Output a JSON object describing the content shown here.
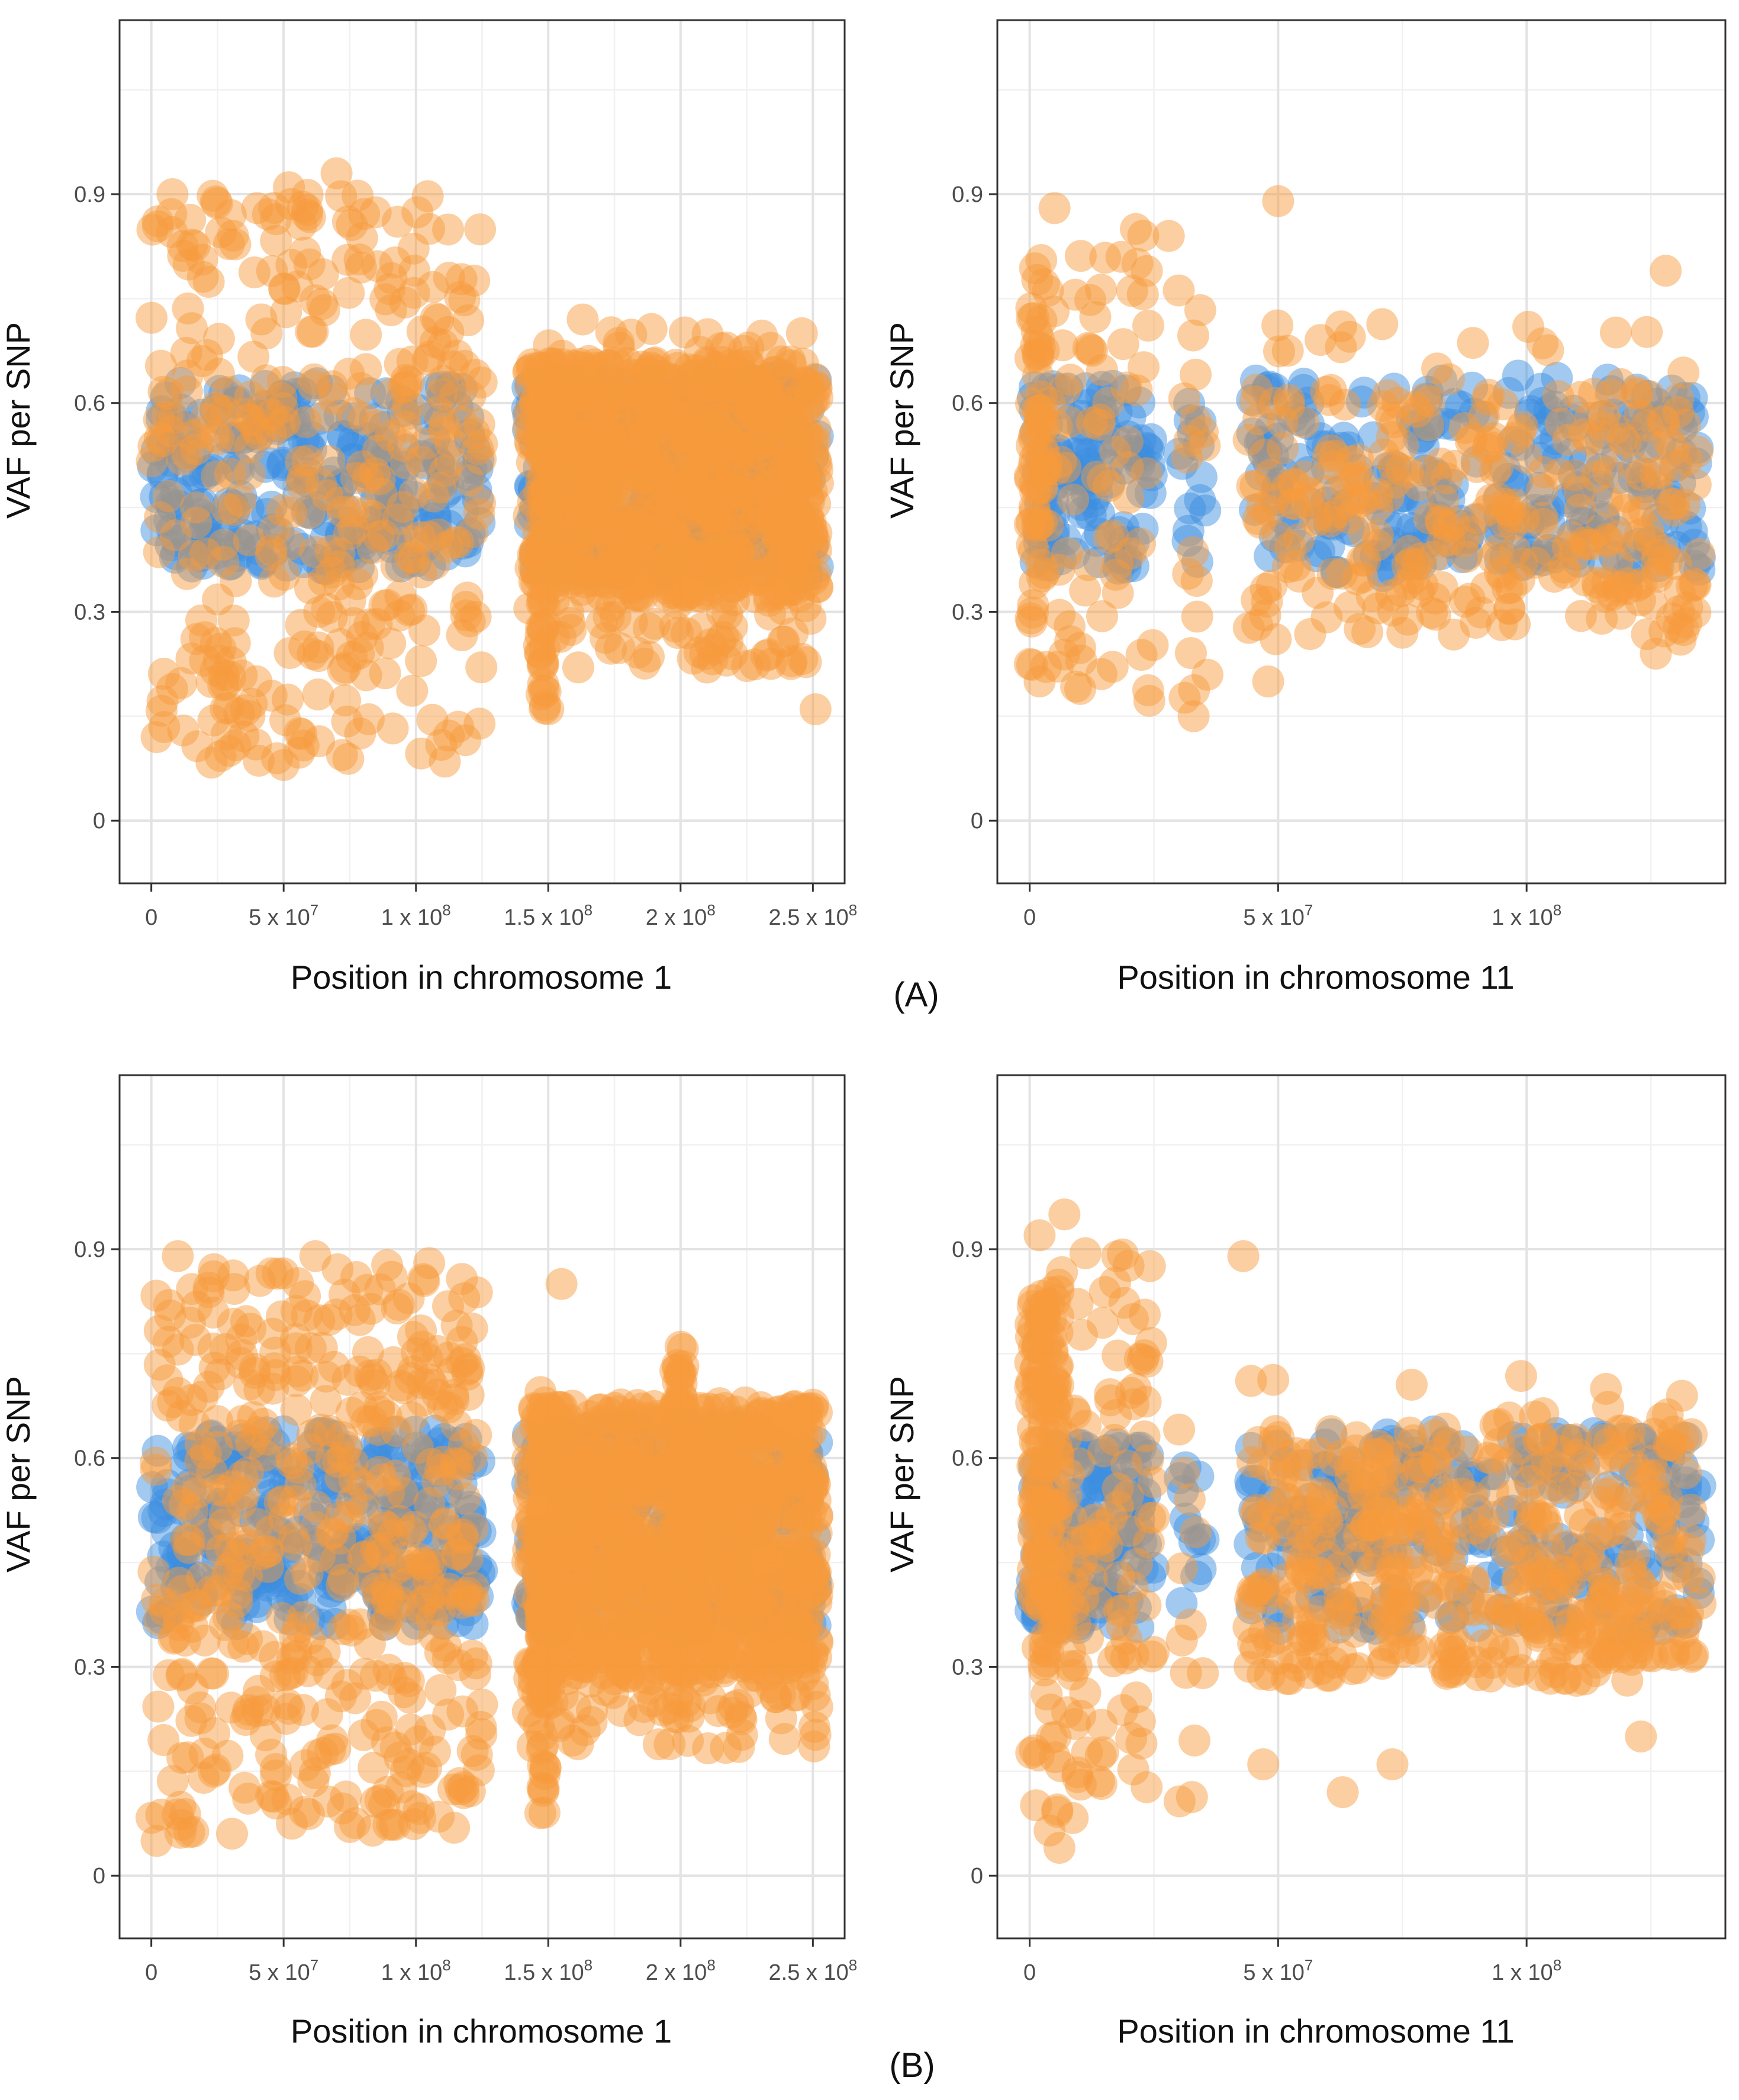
{
  "figure": {
    "panel_labels": [
      "(A)",
      "(B)"
    ]
  },
  "colors": {
    "series_blue": "#3d8fe0",
    "series_orange": "#f79a3c"
  },
  "chart_data": [
    {
      "type": "scatter",
      "panel": "A",
      "title": "",
      "xlabel": "Position in chromosome 1",
      "ylabel": "VAF per SNP",
      "xlim": [
        -12000000,
        262000000
      ],
      "ylim": [
        -0.09,
        1.15
      ],
      "y_ticks": [
        {
          "v": 0,
          "label": "0"
        },
        {
          "v": 0.3,
          "label": "0.3"
        },
        {
          "v": 0.6,
          "label": "0.6"
        },
        {
          "v": 0.9,
          "label": "0.9"
        }
      ],
      "x_ticks": [
        {
          "v": 0,
          "base": "0",
          "exp": ""
        },
        {
          "v": 50000000,
          "base": "5 x 10",
          "exp": "7"
        },
        {
          "v": 100000000,
          "base": "1 x 10",
          "exp": "8"
        },
        {
          "v": 150000000,
          "base": "1.5 x 10",
          "exp": "8"
        },
        {
          "v": 200000000,
          "base": "2 x 10",
          "exp": "8"
        },
        {
          "v": 250000000,
          "base": "2.5 x 10",
          "exp": "8"
        }
      ],
      "series": [
        {
          "name": "blue",
          "color": "#3d8fe0",
          "bands": [
            {
              "x": [
                0,
                125000000
              ],
              "y": [
                0.36,
                0.63
              ],
              "n": 260
            },
            {
              "x": [
                142000000,
                252000000
              ],
              "y": [
                0.35,
                0.64
              ],
              "n": 380
            }
          ],
          "points": []
        },
        {
          "name": "orange",
          "color": "#f79a3c",
          "bands": [
            {
              "x": [
                0,
                125000000
              ],
              "y": [
                0.34,
                0.66
              ],
              "n": 170
            },
            {
              "x": [
                0,
                125000000
              ],
              "y": [
                0.08,
                0.34
              ],
              "n": 110
            },
            {
              "x": [
                0,
                125000000
              ],
              "y": [
                0.66,
                0.9
              ],
              "n": 100
            },
            {
              "x": [
                142000000,
                252000000
              ],
              "y": [
                0.32,
                0.66
              ],
              "n": 900
            },
            {
              "x": [
                142000000,
                252000000
              ],
              "y": [
                0.22,
                0.32
              ],
              "n": 60
            },
            {
              "x": [
                142000000,
                252000000
              ],
              "y": [
                0.66,
                0.71
              ],
              "n": 18
            },
            {
              "x": [
                147000000,
                149000000
              ],
              "y": [
                0.16,
                0.66
              ],
              "n": 50
            }
          ],
          "points": [
            [
              8000000,
              0.9
            ],
            [
              30000000,
              0.87
            ],
            [
              52000000,
              0.91
            ],
            [
              70000000,
              0.93
            ],
            [
              2000000,
              0.12
            ],
            [
              50000000,
              0.08
            ],
            [
              251000000,
              0.16
            ],
            [
              163000000,
              0.72
            ],
            [
              150000000,
              0.16
            ],
            [
              210000000,
              0.22
            ],
            [
              40000000,
              0.88
            ],
            [
              105000000,
              0.85
            ]
          ]
        }
      ]
    },
    {
      "type": "scatter",
      "panel": "A",
      "title": "",
      "xlabel": "Position in chromosome 11",
      "ylabel": "VAF per SNP",
      "xlim": [
        -6500000,
        140000000
      ],
      "ylim": [
        -0.09,
        1.15
      ],
      "y_ticks": [
        {
          "v": 0,
          "label": "0"
        },
        {
          "v": 0.3,
          "label": "0.3"
        },
        {
          "v": 0.6,
          "label": "0.6"
        },
        {
          "v": 0.9,
          "label": "0.9"
        }
      ],
      "x_ticks": [
        {
          "v": 0,
          "base": "0",
          "exp": ""
        },
        {
          "v": 50000000,
          "base": "5 x 10",
          "exp": "7"
        },
        {
          "v": 100000000,
          "base": "1 x 10",
          "exp": "8"
        }
      ],
      "series": [
        {
          "name": "blue",
          "color": "#3d8fe0",
          "bands": [
            {
              "x": [
                0,
                25000000
              ],
              "y": [
                0.36,
                0.63
              ],
              "n": 110
            },
            {
              "x": [
                30000000,
                36000000
              ],
              "y": [
                0.36,
                0.6
              ],
              "n": 14
            },
            {
              "x": [
                44000000,
                135000000
              ],
              "y": [
                0.35,
                0.64
              ],
              "n": 260
            }
          ],
          "points": []
        },
        {
          "name": "orange",
          "color": "#f79a3c",
          "bands": [
            {
              "x": [
                0,
                3000000
              ],
              "y": [
                0.18,
                0.8
              ],
              "n": 50
            },
            {
              "x": [
                0,
                25000000
              ],
              "y": [
                0.36,
                0.62
              ],
              "n": 40
            },
            {
              "x": [
                0,
                25000000
              ],
              "y": [
                0.17,
                0.36
              ],
              "n": 22
            },
            {
              "x": [
                0,
                25000000
              ],
              "y": [
                0.62,
                0.85
              ],
              "n": 30
            },
            {
              "x": [
                30000000,
                36000000
              ],
              "y": [
                0.15,
                0.8
              ],
              "n": 18
            },
            {
              "x": [
                44000000,
                135000000
              ],
              "y": [
                0.26,
                0.62
              ],
              "n": 300
            },
            {
              "x": [
                44000000,
                135000000
              ],
              "y": [
                0.62,
                0.72
              ],
              "n": 18
            }
          ],
          "points": [
            [
              5000000,
              0.88
            ],
            [
              50000000,
              0.89
            ],
            [
              28000000,
              0.84
            ],
            [
              128000000,
              0.79
            ],
            [
              33000000,
              0.15
            ],
            [
              48000000,
              0.2
            ],
            [
              75000000,
              0.27
            ],
            [
              126000000,
              0.24
            ],
            [
              131000000,
              0.26
            ],
            [
              2000000,
              0.2
            ]
          ]
        }
      ]
    },
    {
      "type": "scatter",
      "panel": "B",
      "title": "",
      "xlabel": "Position in chromosome 1",
      "ylabel": "VAF per SNP",
      "xlim": [
        -12000000,
        262000000
      ],
      "ylim": [
        -0.09,
        1.15
      ],
      "y_ticks": [
        {
          "v": 0,
          "label": "0"
        },
        {
          "v": 0.3,
          "label": "0.3"
        },
        {
          "v": 0.6,
          "label": "0.6"
        },
        {
          "v": 0.9,
          "label": "0.9"
        }
      ],
      "x_ticks": [
        {
          "v": 0,
          "base": "0",
          "exp": ""
        },
        {
          "v": 50000000,
          "base": "5 x 10",
          "exp": "7"
        },
        {
          "v": 100000000,
          "base": "1 x 10",
          "exp": "8"
        },
        {
          "v": 150000000,
          "base": "1.5 x 10",
          "exp": "8"
        },
        {
          "v": 200000000,
          "base": "2 x 10",
          "exp": "8"
        },
        {
          "v": 250000000,
          "base": "2.5 x 10",
          "exp": "8"
        }
      ],
      "series": [
        {
          "name": "blue",
          "color": "#3d8fe0",
          "bands": [
            {
              "x": [
                0,
                125000000
              ],
              "y": [
                0.36,
                0.64
              ],
              "n": 300
            },
            {
              "x": [
                142000000,
                252000000
              ],
              "y": [
                0.35,
                0.65
              ],
              "n": 300
            }
          ],
          "points": []
        },
        {
          "name": "orange",
          "color": "#f79a3c",
          "bands": [
            {
              "x": [
                0,
                125000000
              ],
              "y": [
                0.34,
                0.66
              ],
              "n": 200
            },
            {
              "x": [
                0,
                125000000
              ],
              "y": [
                0.06,
                0.34
              ],
              "n": 150
            },
            {
              "x": [
                0,
                125000000
              ],
              "y": [
                0.66,
                0.88
              ],
              "n": 130
            },
            {
              "x": [
                142000000,
                252000000
              ],
              "y": [
                0.28,
                0.68
              ],
              "n": 1100
            },
            {
              "x": [
                142000000,
                252000000
              ],
              "y": [
                0.18,
                0.28
              ],
              "n": 60
            },
            {
              "x": [
                147000000,
                149000000
              ],
              "y": [
                0.09,
                0.7
              ],
              "n": 60
            },
            {
              "x": [
                198000000,
                202000000
              ],
              "y": [
                0.22,
                0.76
              ],
              "n": 60
            }
          ],
          "points": [
            [
              62000000,
              0.89
            ],
            [
              10000000,
              0.89
            ],
            [
              105000000,
              0.88
            ],
            [
              155000000,
              0.85
            ],
            [
              75000000,
              0.07
            ],
            [
              2000000,
              0.05
            ],
            [
              147000000,
              0.09
            ],
            [
              200000000,
              0.76
            ]
          ]
        }
      ]
    },
    {
      "type": "scatter",
      "panel": "B",
      "title": "",
      "xlabel": "Position in chromosome 11",
      "ylabel": "VAF per SNP",
      "xlim": [
        -6500000,
        140000000
      ],
      "ylim": [
        -0.09,
        1.15
      ],
      "y_ticks": [
        {
          "v": 0,
          "label": "0"
        },
        {
          "v": 0.3,
          "label": "0.3"
        },
        {
          "v": 0.6,
          "label": "0.6"
        },
        {
          "v": 0.9,
          "label": "0.9"
        }
      ],
      "x_ticks": [
        {
          "v": 0,
          "base": "0",
          "exp": ""
        },
        {
          "v": 50000000,
          "base": "5 x 10",
          "exp": "7"
        },
        {
          "v": 100000000,
          "base": "1 x 10",
          "exp": "8"
        }
      ],
      "series": [
        {
          "name": "blue",
          "color": "#3d8fe0",
          "bands": [
            {
              "x": [
                0,
                25000000
              ],
              "y": [
                0.35,
                0.62
              ],
              "n": 130
            },
            {
              "x": [
                30000000,
                36000000
              ],
              "y": [
                0.38,
                0.6
              ],
              "n": 12
            },
            {
              "x": [
                44000000,
                135000000
              ],
              "y": [
                0.35,
                0.64
              ],
              "n": 260
            }
          ],
          "points": []
        },
        {
          "name": "orange",
          "color": "#f79a3c",
          "bands": [
            {
              "x": [
                0,
                6000000
              ],
              "y": [
                0.3,
                0.85
              ],
              "n": 120
            },
            {
              "x": [
                0,
                25000000
              ],
              "y": [
                0.05,
                0.36
              ],
              "n": 50
            },
            {
              "x": [
                0,
                25000000
              ],
              "y": [
                0.36,
                0.62
              ],
              "n": 60
            },
            {
              "x": [
                0,
                25000000
              ],
              "y": [
                0.62,
                0.9
              ],
              "n": 40
            },
            {
              "x": [
                30000000,
                36000000
              ],
              "y": [
                0.1,
                0.8
              ],
              "n": 12
            },
            {
              "x": [
                44000000,
                135000000
              ],
              "y": [
                0.28,
                0.64
              ],
              "n": 450
            },
            {
              "x": [
                44000000,
                135000000
              ],
              "y": [
                0.64,
                0.72
              ],
              "n": 15
            }
          ],
          "points": [
            [
              2000000,
              0.92
            ],
            [
              7000000,
              0.95
            ],
            [
              43000000,
              0.89
            ],
            [
              6000000,
              0.04
            ],
            [
              63000000,
              0.12
            ],
            [
              47000000,
              0.16
            ],
            [
              73000000,
              0.16
            ],
            [
              123000000,
              0.2
            ]
          ]
        }
      ]
    }
  ]
}
